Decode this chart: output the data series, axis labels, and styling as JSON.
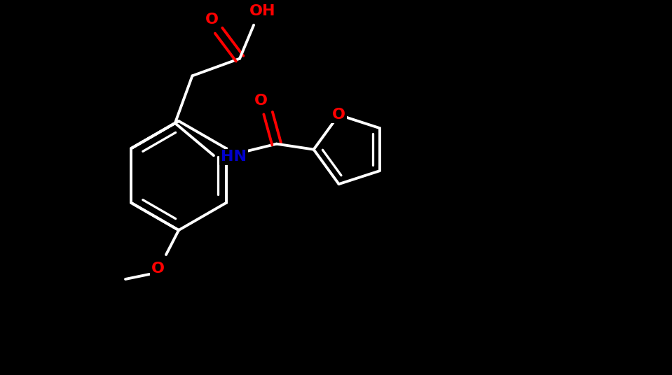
{
  "bg": "#000000",
  "wc": "#ffffff",
  "rc": "#ff0000",
  "nc": "#0000cc",
  "lw": 2.8,
  "fs": 16,
  "figw": 9.59,
  "figh": 5.36,
  "xlim": [
    0,
    9.59
  ],
  "ylim": [
    0,
    5.36
  ],
  "BL": 0.72
}
